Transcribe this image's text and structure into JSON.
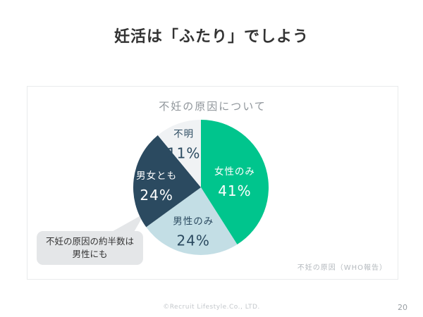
{
  "slide": {
    "title": "妊活は「ふたり」でしよう",
    "footer": "©Recruit Lifestyle.Co., LTD.",
    "page_number": "20"
  },
  "callout": {
    "line1": "不妊の原因の約半数は",
    "line2": "男性にも"
  },
  "chart_data": {
    "type": "pie",
    "title": "不妊の原因について",
    "source_note": "不妊の原因（WHO報告）",
    "categories": [
      "女性のみ",
      "男性のみ",
      "男女とも",
      "不明"
    ],
    "values": [
      41,
      24,
      24,
      11
    ],
    "unit": "%",
    "colors": [
      "#00c58d",
      "#c3dee5",
      "#2b4a60",
      "#f0f2f4"
    ],
    "label_colors": [
      "#ffffff",
      "#2b4a60",
      "#ffffff",
      "#2b4a60"
    ],
    "start_angle_deg": 0,
    "direction": "clockwise",
    "legend": "none",
    "labels_inside": true,
    "label_radius_factors": [
      0.52,
      0.6,
      0.66,
      0.75
    ],
    "callout_color": "#e4e6e8"
  }
}
